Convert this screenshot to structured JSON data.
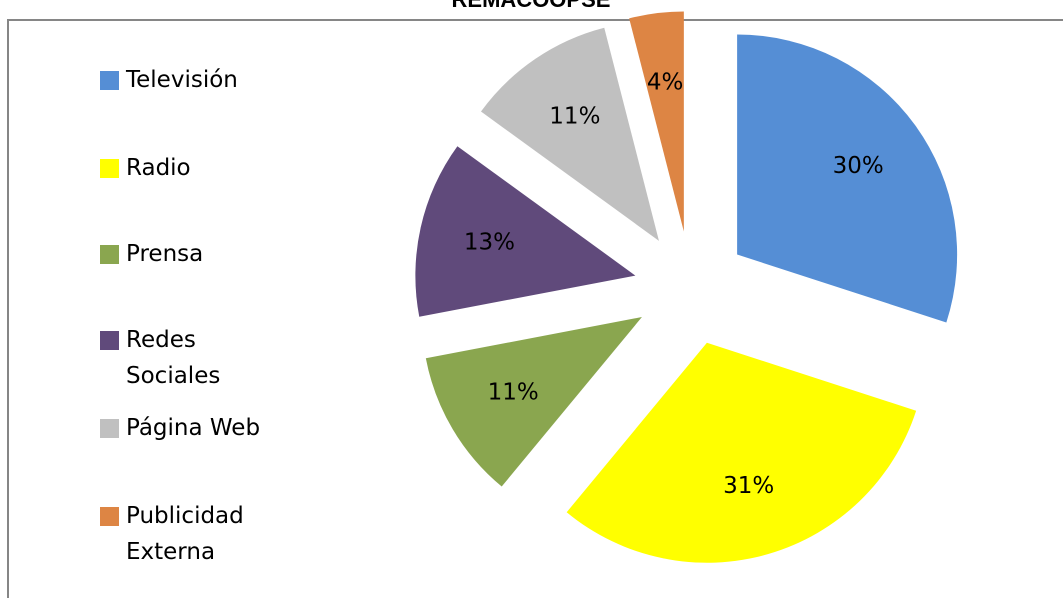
{
  "chart_data": {
    "type": "pie",
    "title": "REMACOOPSE",
    "categories": [
      "Televisión",
      "Radio",
      "Prensa",
      "Redes Sociales",
      "Página Web",
      "Publicidad Externa"
    ],
    "values": [
      30,
      31,
      11,
      13,
      11,
      4
    ],
    "value_labels": [
      "30%",
      "31%",
      "11%",
      "13%",
      "11%",
      "4%"
    ],
    "colors": [
      "#558ed5",
      "#ffff00",
      "#8aa64f",
      "#604a7b",
      "#c0c0c0",
      "#dd8544"
    ],
    "legend": "left"
  }
}
